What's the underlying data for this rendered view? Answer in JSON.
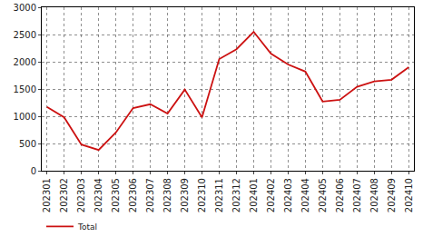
{
  "chart_data": {
    "type": "line",
    "categories": [
      "202301",
      "202302",
      "202303",
      "202304",
      "202305",
      "202306",
      "202307",
      "202308",
      "202309",
      "202310",
      "202311",
      "202312",
      "202401",
      "202402",
      "202403",
      "202404",
      "202405",
      "202406",
      "202407",
      "202408",
      "202409",
      "202410"
    ],
    "series": [
      {
        "name": "Total",
        "color": "#cc1111",
        "values": [
          1170,
          980,
          480,
          380,
          700,
          1150,
          1220,
          1050,
          1490,
          980,
          2050,
          2230,
          2550,
          2150,
          1950,
          1820,
          1270,
          1300,
          1540,
          1640,
          1670,
          1900
        ]
      }
    ],
    "ylim": [
      0,
      3000
    ],
    "yticks": [
      0,
      500,
      1000,
      1500,
      2000,
      2500,
      3000
    ],
    "grid": true,
    "legend": "bottom left"
  }
}
